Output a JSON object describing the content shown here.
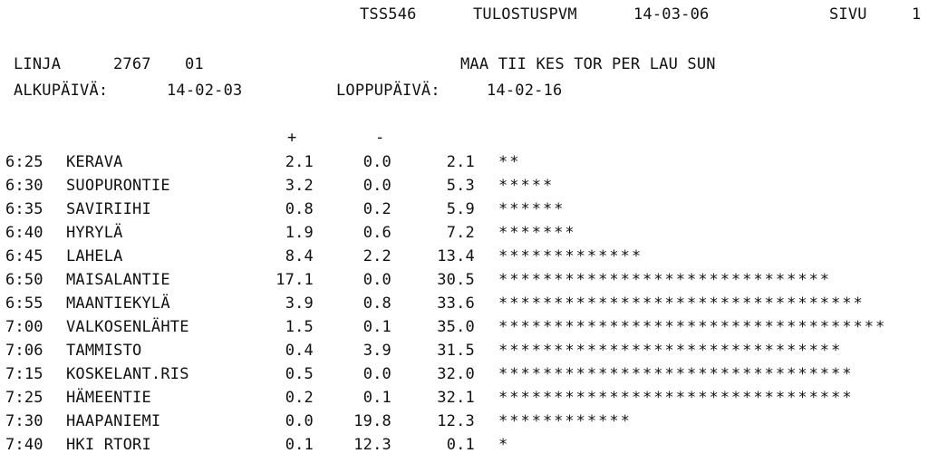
{
  "header": {
    "report_id": "TSS546",
    "print_date_label": "TULOSTUSPVM",
    "print_date": "14-03-06",
    "page_label": "SIVU",
    "page_number": "1"
  },
  "line_info": {
    "line_label": "LINJA",
    "line_number": "2767",
    "line_variant": "01",
    "days_header": "MAA TII KES TOR PER LAU SUN",
    "start_label": "ALKUPÄIVÄ:",
    "start_date": "14-02-03",
    "end_label": "LOPPUPÄIVÄ:",
    "end_date": "14-02-16"
  },
  "columns": {
    "plus": "+",
    "minus": "-"
  },
  "stops": [
    {
      "time": "6:25",
      "name": "KERAVA",
      "plus": "2.1",
      "minus": "0.0",
      "cumulative": "2.1",
      "bar": "**"
    },
    {
      "time": "6:30",
      "name": "SUOPURONTIE",
      "plus": "3.2",
      "minus": "0.0",
      "cumulative": "5.3",
      "bar": "*****"
    },
    {
      "time": "6:35",
      "name": "SAVIRIIHI",
      "plus": "0.8",
      "minus": "0.2",
      "cumulative": "5.9",
      "bar": "******"
    },
    {
      "time": "6:40",
      "name": "HYRYLÄ",
      "plus": "1.9",
      "minus": "0.6",
      "cumulative": "7.2",
      "bar": "*******"
    },
    {
      "time": "6:45",
      "name": "LAHELA",
      "plus": "8.4",
      "minus": "2.2",
      "cumulative": "13.4",
      "bar": "*************"
    },
    {
      "time": "6:50",
      "name": "MAISALANTIE",
      "plus": "17.1",
      "minus": "0.0",
      "cumulative": "30.5",
      "bar": "******************************"
    },
    {
      "time": "6:55",
      "name": "MAANTIEKYLÄ",
      "plus": "3.9",
      "minus": "0.8",
      "cumulative": "33.6",
      "bar": "*********************************"
    },
    {
      "time": "7:00",
      "name": "VALKOSENLÄHTE",
      "plus": "1.5",
      "minus": "0.1",
      "cumulative": "35.0",
      "bar": "***********************************"
    },
    {
      "time": "7:06",
      "name": "TAMMISTO",
      "plus": "0.4",
      "minus": "3.9",
      "cumulative": "31.5",
      "bar": "*******************************"
    },
    {
      "time": "7:15",
      "name": "KOSKELANT.RIS",
      "plus": "0.5",
      "minus": "0.0",
      "cumulative": "32.0",
      "bar": "********************************"
    },
    {
      "time": "7:25",
      "name": "HÄMEENTIE",
      "plus": "0.2",
      "minus": "0.1",
      "cumulative": "32.1",
      "bar": "********************************"
    },
    {
      "time": "7:30",
      "name": "HAAPANIEMI",
      "plus": "0.0",
      "minus": "19.8",
      "cumulative": "12.3",
      "bar": "************"
    },
    {
      "time": "7:40",
      "name": "HKI RTORI",
      "plus": "0.1",
      "minus": "12.3",
      "cumulative": "0.1",
      "bar": "*"
    }
  ]
}
